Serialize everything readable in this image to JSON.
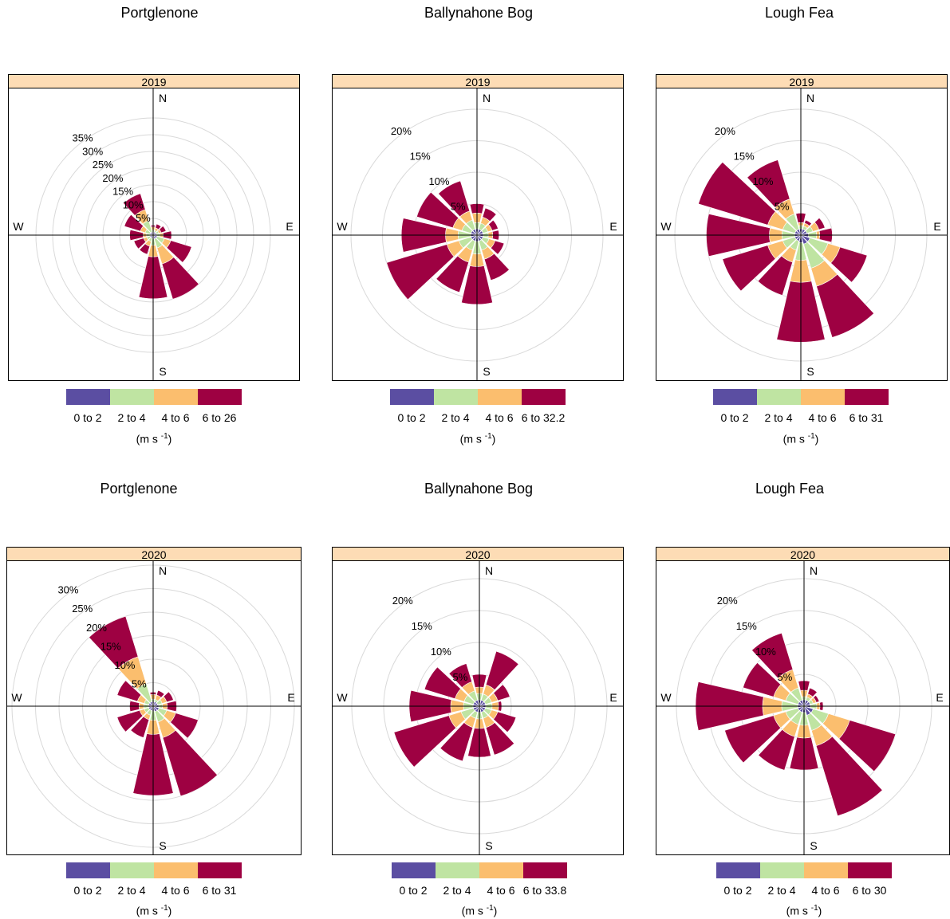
{
  "colors": {
    "c0": "#5B4EA2",
    "c1": "#BFE4A2",
    "c2": "#FBBE6E",
    "c3": "#9E0142",
    "strip_bg": "#FDDCB5",
    "grid": "#D9D9D9"
  },
  "units_label": "(m s",
  "units_sup": "-1",
  "units_close": ")",
  "compass": {
    "n": "N",
    "e": "E",
    "s": "S",
    "w": "W"
  },
  "chart_data": [
    {
      "type": "windrose",
      "title": "Portglenone",
      "strip": "2019",
      "rings": [
        5,
        10,
        15,
        20,
        25,
        30,
        35
      ],
      "ring_labels": [
        "5%",
        "10%",
        "15%",
        "20%",
        "25%",
        "30%",
        "35%"
      ],
      "legend": [
        "0 to 2",
        "2 to 4",
        "4 to 6",
        "6 to 26"
      ],
      "directions_deg": [
        0,
        30,
        60,
        90,
        120,
        150,
        180,
        210,
        240,
        270,
        300,
        330
      ],
      "cumulative_percent": [
        [
          1.0,
          1.5,
          2.5,
          3.0
        ],
        [
          1.0,
          1.5,
          2.3,
          3.5
        ],
        [
          1.0,
          1.8,
          2.5,
          4.0
        ],
        [
          1.2,
          2.0,
          3.0,
          5.5
        ],
        [
          1.3,
          3.5,
          5.5,
          12.0
        ],
        [
          1.2,
          4.0,
          9.0,
          20.0
        ],
        [
          1.0,
          3.0,
          6.5,
          19.0
        ],
        [
          1.0,
          2.0,
          3.5,
          6.0
        ],
        [
          1.0,
          2.0,
          3.0,
          6.0
        ],
        [
          1.0,
          2.0,
          3.0,
          7.0
        ],
        [
          1.0,
          2.5,
          4.0,
          9.0
        ],
        [
          1.0,
          4.5,
          8.0,
          13.0
        ]
      ]
    },
    {
      "type": "windrose",
      "title": "Ballynahone Bog",
      "strip": "2019",
      "rings": [
        5,
        10,
        15,
        20
      ],
      "ring_labels": [
        "5%",
        "10%",
        "15%",
        "20%"
      ],
      "legend": [
        "0 to 2",
        "2 to 4",
        "4 to 6",
        "6 to 32.2"
      ],
      "directions_deg": [
        0,
        30,
        60,
        90,
        120,
        150,
        180,
        210,
        240,
        270,
        300,
        330
      ],
      "cumulative_percent": [
        [
          1.0,
          2.0,
          3.5,
          5.0
        ],
        [
          1.0,
          2.0,
          3.0,
          4.5
        ],
        [
          1.0,
          1.8,
          2.5,
          3.5
        ],
        [
          1.0,
          1.8,
          2.5,
          3.5
        ],
        [
          1.0,
          2.0,
          3.0,
          4.5
        ],
        [
          1.0,
          2.5,
          4.0,
          7.5
        ],
        [
          1.0,
          3.0,
          5.0,
          11.0
        ],
        [
          1.0,
          2.5,
          4.5,
          9.5
        ],
        [
          1.0,
          3.0,
          5.0,
          15.0
        ],
        [
          1.0,
          3.0,
          5.0,
          12.0
        ],
        [
          1.0,
          2.5,
          4.0,
          10.0
        ],
        [
          1.0,
          2.5,
          4.0,
          9.0
        ]
      ]
    },
    {
      "type": "windrose",
      "title": "Lough Fea",
      "strip": "2019",
      "rings": [
        5,
        10,
        15,
        20
      ],
      "ring_labels": [
        "5%",
        "10%",
        "15%",
        "20%"
      ],
      "legend": [
        "0 to 2",
        "2 to 4",
        "4 to 6",
        "6 to 31"
      ],
      "directions_deg": [
        0,
        30,
        60,
        90,
        120,
        150,
        180,
        210,
        240,
        270,
        300,
        330
      ],
      "cumulative_percent": [
        [
          1.0,
          1.5,
          2.0,
          3.5
        ],
        [
          1.0,
          1.5,
          2.0,
          2.5
        ],
        [
          1.0,
          2.0,
          3.0,
          4.0
        ],
        [
          1.2,
          2.5,
          3.0,
          5.0
        ],
        [
          1.5,
          4.5,
          6.5,
          11.0
        ],
        [
          1.5,
          5.5,
          8.5,
          17.0
        ],
        [
          1.2,
          4.0,
          7.5,
          17.0
        ],
        [
          1.0,
          2.5,
          4.5,
          10.0
        ],
        [
          1.0,
          3.0,
          5.5,
          13.0
        ],
        [
          1.0,
          3.0,
          5.0,
          15.0
        ],
        [
          1.0,
          3.0,
          5.5,
          17.0
        ],
        [
          1.0,
          3.5,
          6.0,
          12.5
        ]
      ]
    },
    {
      "type": "windrose",
      "title": "Portglenone",
      "strip": "2020",
      "rings": [
        5,
        10,
        15,
        20,
        25,
        30
      ],
      "ring_labels": [
        "5%",
        "10%",
        "15%",
        "20%",
        "25%",
        "30%"
      ],
      "legend": [
        "0 to 2",
        "2 to 4",
        "4 to 6",
        "6 to 31"
      ],
      "directions_deg": [
        0,
        30,
        60,
        90,
        120,
        150,
        180,
        210,
        240,
        270,
        300,
        330
      ],
      "cumulative_percent": [
        [
          1.0,
          1.5,
          2.5,
          3.0
        ],
        [
          1.0,
          1.5,
          2.5,
          3.5
        ],
        [
          1.0,
          2.0,
          3.0,
          4.5
        ],
        [
          1.2,
          2.0,
          3.0,
          5.0
        ],
        [
          1.3,
          3.0,
          5.0,
          10.0
        ],
        [
          1.2,
          3.5,
          7.0,
          20.0
        ],
        [
          1.0,
          3.0,
          6.0,
          19.0
        ],
        [
          1.0,
          2.0,
          3.0,
          7.0
        ],
        [
          1.0,
          2.0,
          3.0,
          8.0
        ],
        [
          1.0,
          2.0,
          3.0,
          5.0
        ],
        [
          1.0,
          2.0,
          3.5,
          8.0
        ],
        [
          1.0,
          5.0,
          11.0,
          20.0
        ]
      ]
    },
    {
      "type": "windrose",
      "title": "Ballynahone Bog",
      "strip": "2020",
      "rings": [
        5,
        10,
        15,
        20
      ],
      "ring_labels": [
        "5%",
        "10%",
        "15%",
        "20%"
      ],
      "legend": [
        "0 to 2",
        "2 to 4",
        "4 to 6",
        "6 to 33.8"
      ],
      "directions_deg": [
        0,
        30,
        60,
        90,
        120,
        150,
        180,
        210,
        240,
        270,
        300,
        330
      ],
      "cumulative_percent": [
        [
          1.0,
          2.0,
          3.0,
          5.0
        ],
        [
          1.0,
          2.0,
          3.5,
          9.0
        ],
        [
          1.0,
          2.0,
          3.0,
          5.0
        ],
        [
          1.0,
          2.0,
          3.0,
          3.5
        ],
        [
          1.0,
          2.0,
          3.0,
          6.0
        ],
        [
          1.0,
          2.0,
          3.5,
          8.0
        ],
        [
          1.0,
          2.0,
          3.5,
          8.0
        ],
        [
          1.0,
          2.0,
          3.5,
          9.0
        ],
        [
          1.0,
          3.0,
          5.0,
          14.0
        ],
        [
          1.0,
          2.5,
          4.5,
          11.0
        ],
        [
          1.0,
          2.5,
          4.0,
          9.0
        ],
        [
          1.0,
          2.5,
          4.0,
          7.0
        ]
      ]
    },
    {
      "type": "windrose",
      "title": "Lough Fea",
      "strip": "2020",
      "rings": [
        5,
        10,
        15,
        20
      ],
      "ring_labels": [
        "5%",
        "10%",
        "15%",
        "20%"
      ],
      "legend": [
        "0 to 2",
        "2 to 4",
        "4 to 6",
        "6 to 30"
      ],
      "directions_deg": [
        0,
        30,
        60,
        90,
        120,
        150,
        180,
        210,
        240,
        270,
        300,
        330
      ],
      "cumulative_percent": [
        [
          1.0,
          1.5,
          2.5,
          4.0
        ],
        [
          1.0,
          1.5,
          2.0,
          3.0
        ],
        [
          1.0,
          1.5,
          2.0,
          2.5
        ],
        [
          1.0,
          2.0,
          2.5,
          3.0
        ],
        [
          1.5,
          4.0,
          7.5,
          15.0
        ],
        [
          1.5,
          4.0,
          6.5,
          18.0
        ],
        [
          1.0,
          3.0,
          5.0,
          10.0
        ],
        [
          1.0,
          3.0,
          5.0,
          10.5
        ],
        [
          1.0,
          3.0,
          5.0,
          13.0
        ],
        [
          1.0,
          3.5,
          6.5,
          17.0
        ],
        [
          1.0,
          3.0,
          5.0,
          10.0
        ],
        [
          1.0,
          3.0,
          6.0,
          12.0
        ]
      ]
    }
  ]
}
